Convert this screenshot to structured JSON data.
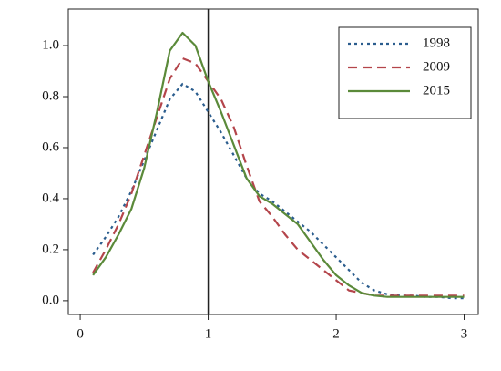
{
  "chart_data": {
    "type": "line",
    "x": [
      0.1,
      0.2,
      0.3,
      0.4,
      0.5,
      0.6,
      0.7,
      0.8,
      0.9,
      1.0,
      1.1,
      1.2,
      1.3,
      1.4,
      1.5,
      1.6,
      1.7,
      1.8,
      1.9,
      2.0,
      2.1,
      2.2,
      2.3,
      2.4,
      2.5,
      2.6,
      2.7,
      2.8,
      2.9,
      3.0
    ],
    "series": [
      {
        "name": "1998",
        "color": "#2b5d8e",
        "dash": "dotted",
        "values": [
          0.18,
          0.25,
          0.33,
          0.43,
          0.55,
          0.67,
          0.79,
          0.85,
          0.82,
          0.74,
          0.66,
          0.57,
          0.48,
          0.42,
          0.39,
          0.35,
          0.31,
          0.27,
          0.22,
          0.17,
          0.12,
          0.07,
          0.04,
          0.025,
          0.02,
          0.02,
          0.015,
          0.015,
          0.01,
          0.01
        ]
      },
      {
        "name": "2009",
        "color": "#b4454b",
        "dash": "dashed",
        "values": [
          0.11,
          0.2,
          0.3,
          0.42,
          0.57,
          0.72,
          0.87,
          0.95,
          0.93,
          0.86,
          0.79,
          0.68,
          0.53,
          0.39,
          0.33,
          0.26,
          0.2,
          0.16,
          0.12,
          0.08,
          0.04,
          0.03,
          0.02,
          0.02,
          0.02,
          0.02,
          0.02,
          0.02,
          0.02,
          0.02
        ]
      },
      {
        "name": "2015",
        "color": "#5b8a3a",
        "dash": "solid",
        "values": [
          0.1,
          0.17,
          0.26,
          0.36,
          0.52,
          0.74,
          0.98,
          1.05,
          1.0,
          0.86,
          0.74,
          0.61,
          0.48,
          0.41,
          0.38,
          0.34,
          0.3,
          0.23,
          0.16,
          0.1,
          0.06,
          0.03,
          0.02,
          0.015,
          0.015,
          0.015,
          0.015,
          0.015,
          0.015,
          0.015
        ]
      }
    ],
    "xlim": [
      -0.093,
      3.11
    ],
    "ylim": [
      -0.054,
      1.143
    ],
    "xticks": [
      0,
      1,
      2,
      3
    ],
    "yticks": [
      {
        "value": 0,
        "label": "0.0"
      },
      0.2,
      0.4,
      0.6,
      0.8,
      {
        "value": 1,
        "label": "1.0"
      }
    ],
    "vline": 1,
    "legend": "top-right"
  }
}
